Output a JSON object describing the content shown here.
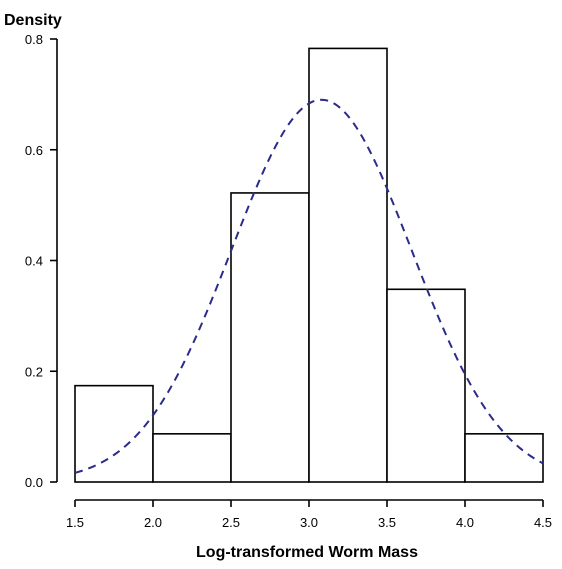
{
  "chart_data": {
    "type": "bar",
    "xlabel": "Log-transformed Worm Mass",
    "ylabel": "Density",
    "xlim": [
      1.5,
      4.5
    ],
    "ylim": [
      0,
      0.8
    ],
    "x_ticks": [
      "1.5",
      "2.0",
      "2.5",
      "3.0",
      "3.5",
      "4.0",
      "4.5"
    ],
    "y_ticks": [
      "0.0",
      "0.2",
      "0.4",
      "0.6",
      "0.8"
    ],
    "grid": false,
    "bins": [
      {
        "start": 1.5,
        "end": 2.0,
        "density": 0.174
      },
      {
        "start": 2.0,
        "end": 2.5,
        "density": 0.087
      },
      {
        "start": 2.5,
        "end": 3.0,
        "density": 0.522
      },
      {
        "start": 3.0,
        "end": 3.5,
        "density": 0.783
      },
      {
        "start": 3.5,
        "end": 4.0,
        "density": 0.348
      },
      {
        "start": 4.0,
        "end": 4.5,
        "density": 0.087
      }
    ],
    "density_curve": {
      "style": "dashed",
      "color": "#2b2b8c",
      "mean": 3.08,
      "sd": 0.578
    },
    "bar_fill": "#ffffff",
    "bar_stroke": "#000000"
  }
}
